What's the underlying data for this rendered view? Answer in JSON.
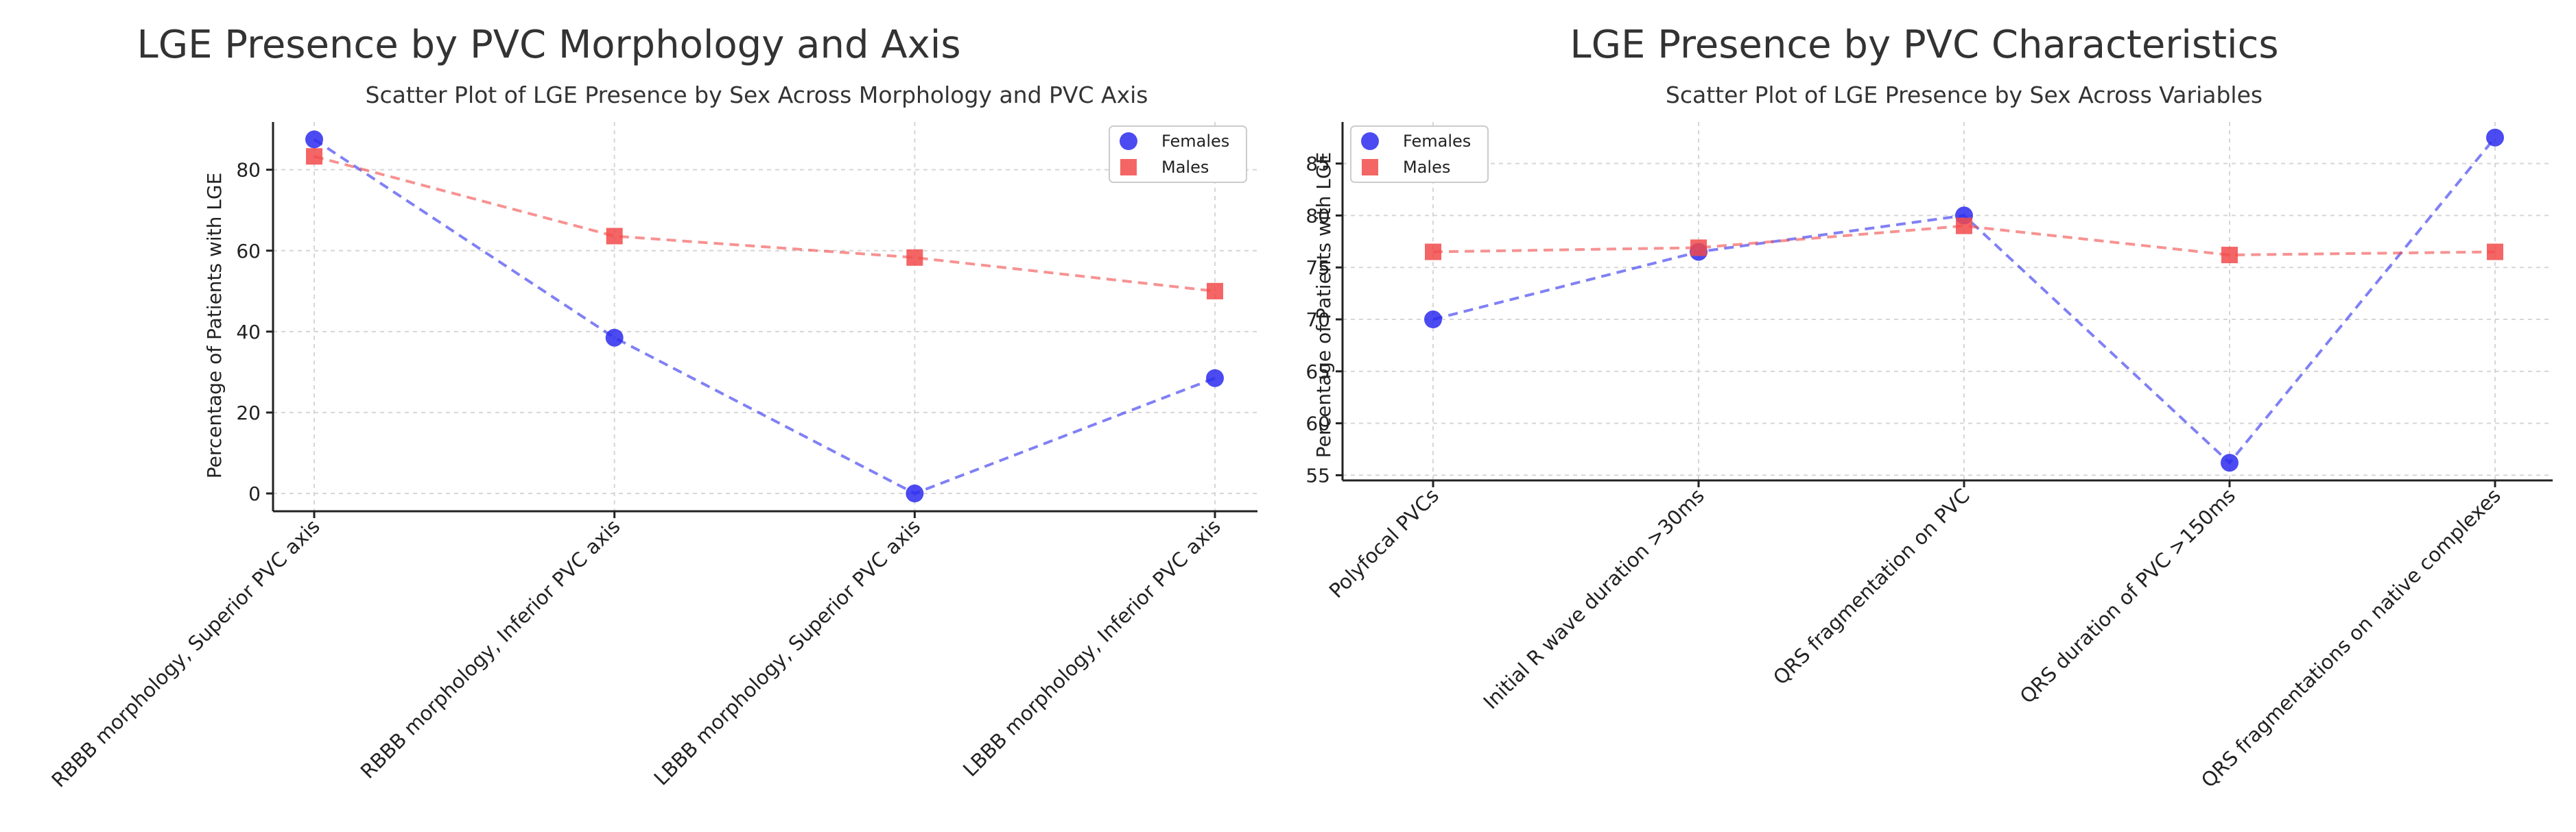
{
  "chart_data": [
    {
      "type": "line",
      "title": "LGE Presence by PVC Morphology and Axis",
      "subtitle": "Scatter Plot of LGE Presence by Sex Across Morphology and PVC Axis",
      "xlabel": "",
      "ylabel": "Percentage of Patients with LGE",
      "categories": [
        "RBBB morphology, Superior PVC axis",
        "RBBB morphology, Inferior PVC axis",
        "LBBB morphology, Superior PVC axis",
        "LBBB morphology, Inferior PVC axis"
      ],
      "series": [
        {
          "name": "Females",
          "color": "#2b2bef",
          "marker": "circle",
          "values": [
            87.5,
            38.5,
            0,
            28.5
          ]
        },
        {
          "name": "Males",
          "color": "#f24a4a",
          "marker": "square",
          "values": [
            83.3,
            63.6,
            58.3,
            50.0
          ]
        }
      ],
      "ylim": [
        -4.4,
        91.8
      ],
      "yticks": [
        0,
        20,
        40,
        60,
        80
      ],
      "grid": true,
      "legend_position": "top-right"
    },
    {
      "type": "line",
      "title": "LGE Presence by PVC Characteristics",
      "subtitle": "Scatter Plot of LGE Presence by Sex Across Variables",
      "xlabel": "",
      "ylabel": "Percentage of Patients with LGE",
      "categories": [
        "Polyfocal PVCs",
        "Initial R wave duration >30ms",
        "QRS fragmentation on PVC",
        "QRS duration of PVC >150ms",
        "QRS fragmentations on native complexes"
      ],
      "series": [
        {
          "name": "Females",
          "color": "#2b2bef",
          "marker": "circle",
          "values": [
            70.0,
            76.5,
            80.0,
            56.2,
            87.5
          ]
        },
        {
          "name": "Males",
          "color": "#f24a4a",
          "marker": "square",
          "values": [
            76.5,
            76.9,
            79.0,
            76.2,
            76.5
          ]
        }
      ],
      "ylim": [
        54.5,
        89.0
      ],
      "yticks": [
        55,
        60,
        65,
        70,
        75,
        80,
        85
      ],
      "grid": true,
      "legend_position": "top-left"
    }
  ]
}
